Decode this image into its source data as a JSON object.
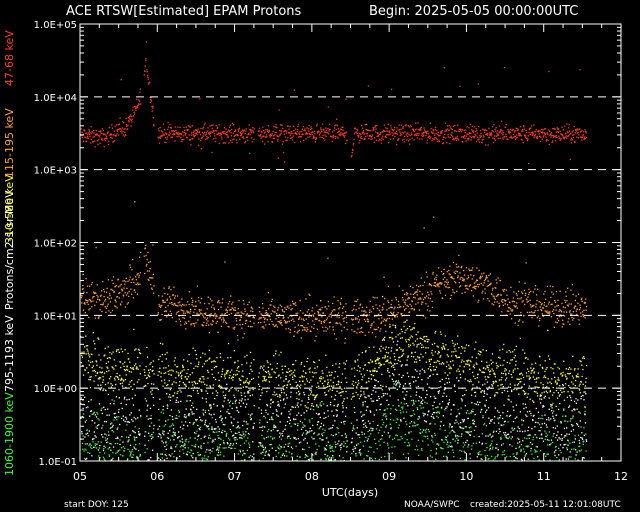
{
  "chart_data": {
    "type": "scatter",
    "title_left": "ACE RTSW[Estimated] EPAM Protons",
    "title_right": "Begin: 2025-05-05 00:00:00UTC",
    "xlabel": "UTC(days)",
    "x_ticks": [
      "05",
      "06",
      "07",
      "08",
      "09",
      "10",
      "11",
      "12"
    ],
    "xlim": [
      0,
      7
    ],
    "y_scale": "log",
    "ylim": [
      0.1,
      100000
    ],
    "y_ticks": [
      "1.0E-01",
      "1.0E+00",
      "1.0E+01",
      "1.0E+02",
      "1.0E+03",
      "1.0E+04",
      "1.0E+05"
    ],
    "y_unit_label": "Protons/cm2-s-sr-MeV",
    "grid": "dashed horizontal at each decade",
    "series": [
      {
        "name": "47-68 keV",
        "color": "#ff3d1e",
        "baseline": 3000,
        "profile": [
          [
            0,
            3000
          ],
          [
            0.3,
            2800
          ],
          [
            0.6,
            4000
          ],
          [
            0.75,
            8000
          ],
          [
            0.85,
            30000
          ],
          [
            0.95,
            5000
          ],
          [
            1.0,
            3200
          ],
          [
            3.45,
            3200
          ],
          [
            3.5,
            1500
          ],
          [
            3.55,
            3200
          ],
          [
            7,
            3100
          ]
        ]
      },
      {
        "name": "115-195 keV",
        "color": "#ffa033",
        "baseline": 10,
        "profile": [
          [
            0,
            20
          ],
          [
            0.3,
            15
          ],
          [
            0.7,
            30
          ],
          [
            0.85,
            60
          ],
          [
            1.0,
            15
          ],
          [
            2.0,
            10
          ],
          [
            3.0,
            9
          ],
          [
            3.9,
            10
          ],
          [
            4.2,
            15
          ],
          [
            4.6,
            25
          ],
          [
            4.9,
            35
          ],
          [
            5.3,
            25
          ],
          [
            5.6,
            15
          ],
          [
            6.5,
            12
          ],
          [
            7,
            12
          ]
        ]
      },
      {
        "name": "310-580 keV",
        "color": "#ffff33",
        "baseline": 1.5,
        "profile": [
          [
            0,
            3
          ],
          [
            0.3,
            2
          ],
          [
            1.0,
            1.6
          ],
          [
            2.0,
            1.3
          ],
          [
            3.0,
            1.2
          ],
          [
            3.7,
            1.3
          ],
          [
            4.0,
            4
          ],
          [
            4.2,
            5
          ],
          [
            4.6,
            3
          ],
          [
            5.2,
            1.8
          ],
          [
            6.0,
            1.4
          ],
          [
            7,
            1.3
          ]
        ]
      },
      {
        "name": "795-1193 keV",
        "color": "#ffffff",
        "baseline": 0.3,
        "profile": [
          [
            0,
            0.4
          ],
          [
            1.0,
            0.3
          ],
          [
            2.0,
            0.3
          ],
          [
            3.0,
            0.3
          ],
          [
            3.6,
            0.25
          ],
          [
            3.9,
            1.2
          ],
          [
            4.2,
            1.0
          ],
          [
            4.8,
            0.5
          ],
          [
            5.5,
            0.35
          ],
          [
            7,
            0.3
          ]
        ]
      },
      {
        "name": "1060-1900 keV",
        "color": "#33ff33",
        "baseline": 0.13,
        "profile": [
          [
            0,
            0.15
          ],
          [
            0.5,
            0.12
          ],
          [
            3.8,
            0.12
          ],
          [
            4.0,
            0.35
          ],
          [
            4.2,
            0.3
          ],
          [
            4.6,
            0.18
          ],
          [
            5.2,
            0.12
          ],
          [
            7,
            0.12
          ]
        ]
      }
    ],
    "data_end_day": 6.55,
    "footer_left": "start DOY:  125",
    "footer_mid": "NOAA/SWPC",
    "footer_right": "created:2025-05-11 12:01:08UTC"
  }
}
